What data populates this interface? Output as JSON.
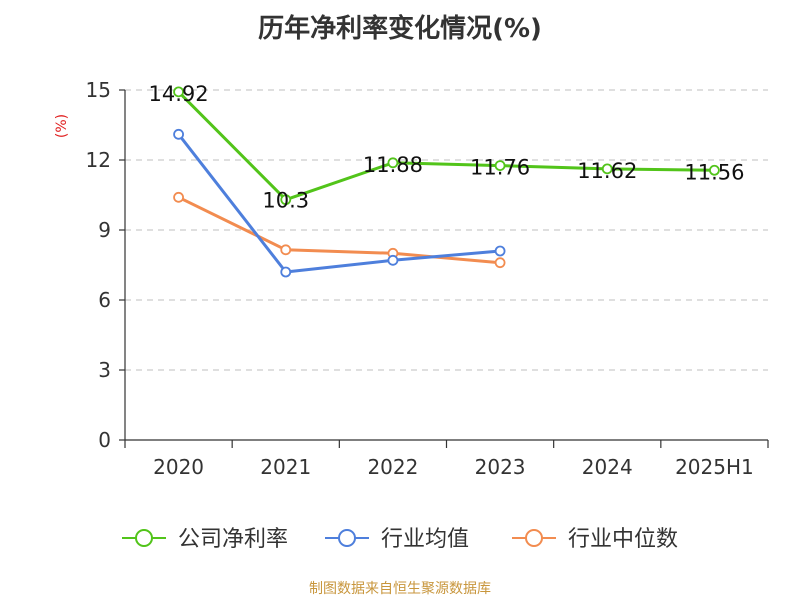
{
  "chart_data": {
    "type": "line",
    "title": "历年净利率变化情况(%)",
    "ylabel": "(%)",
    "xlabel": "",
    "categories": [
      "2020",
      "2021",
      "2022",
      "2023",
      "2024",
      "2025H1"
    ],
    "y_ticks": [
      "0",
      "3",
      "6",
      "9",
      "12",
      "15"
    ],
    "ylim": [
      0,
      15
    ],
    "grid": true,
    "legend_position": "bottom",
    "series": [
      {
        "name": "公司净利率",
        "color": "#52c41a",
        "values": [
          14.92,
          10.3,
          11.88,
          11.76,
          11.62,
          11.56
        ],
        "labels": [
          "14.92",
          "10.3",
          "11.88",
          "11.76",
          "11.62",
          "11.56"
        ]
      },
      {
        "name": "行业均值",
        "color": "#4e7fdc",
        "values": [
          13.1,
          7.2,
          7.7,
          8.1,
          null,
          null
        ]
      },
      {
        "name": "行业中位数",
        "color": "#f28c50",
        "values": [
          10.4,
          8.15,
          8.0,
          7.6,
          null,
          null
        ]
      }
    ]
  },
  "source": "制图数据来自恒生聚源数据库"
}
